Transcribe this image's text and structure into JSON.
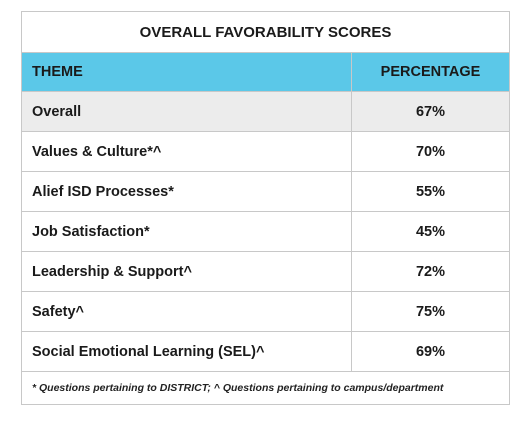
{
  "table": {
    "title": "OVERALL FAVORABILITY SCORES",
    "headers": {
      "theme": "THEME",
      "percentage": "PERCENTAGE"
    },
    "rows": [
      {
        "theme": "Overall",
        "percentage": "67%"
      },
      {
        "theme": "Values & Culture*^",
        "percentage": "70%"
      },
      {
        "theme": "Alief ISD Processes*",
        "percentage": "55%"
      },
      {
        "theme": "Job Satisfaction*",
        "percentage": "45%"
      },
      {
        "theme": "Leadership & Support^",
        "percentage": "72%"
      },
      {
        "theme": "Safety^",
        "percentage": "75%"
      },
      {
        "theme": "Social Emotional Learning (SEL)^",
        "percentage": "69%"
      }
    ],
    "footnote": "* Questions pertaining to DISTRICT; ^ Questions pertaining to campus/department"
  }
}
